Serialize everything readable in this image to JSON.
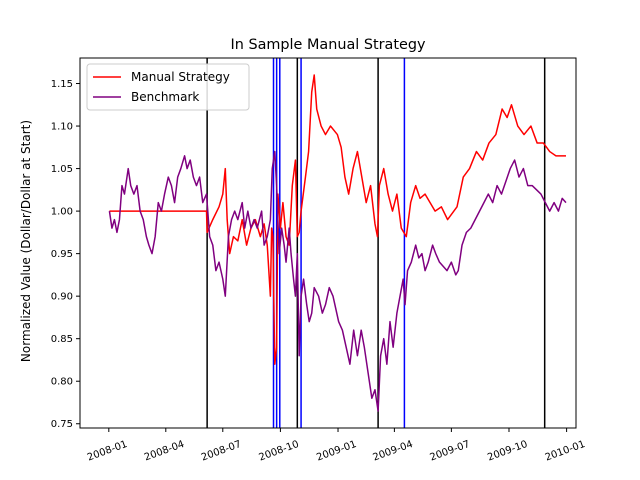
{
  "chart_data": {
    "type": "line",
    "title": "In Sample Manual Strategy",
    "xlabel": "",
    "ylabel": "Normalized Value (Dollar/Dollar at Start)",
    "x_range": [
      "2007-11-16",
      "2010-01-16"
    ],
    "ylim": [
      0.745,
      1.18
    ],
    "grid": false,
    "legend_position": "top-left",
    "x_ticks": [
      "2008-01",
      "2008-04",
      "2008-07",
      "2008-10",
      "2009-01",
      "2009-04",
      "2009-07",
      "2009-10",
      "2010-01"
    ],
    "y_ticks": [
      0.75,
      0.8,
      0.85,
      0.9,
      0.95,
      1.0,
      1.05,
      1.1,
      1.15
    ],
    "series": [
      {
        "name": "Manual Strategy",
        "color": "#ff0000",
        "points": [
          [
            "2008-01-02",
            1.0
          ],
          [
            "2008-06-05",
            1.0
          ],
          [
            "2008-06-06",
            0.975
          ],
          [
            "2008-06-15",
            0.99
          ],
          [
            "2008-06-25",
            1.005
          ],
          [
            "2008-07-01",
            1.02
          ],
          [
            "2008-07-05",
            1.05
          ],
          [
            "2008-07-08",
            0.99
          ],
          [
            "2008-07-12",
            0.95
          ],
          [
            "2008-07-18",
            0.97
          ],
          [
            "2008-07-25",
            0.965
          ],
          [
            "2008-08-01",
            0.99
          ],
          [
            "2008-08-08",
            0.96
          ],
          [
            "2008-08-15",
            0.98
          ],
          [
            "2008-08-22",
            0.99
          ],
          [
            "2008-08-30",
            0.97
          ],
          [
            "2008-09-05",
            0.985
          ],
          [
            "2008-09-10",
            0.96
          ],
          [
            "2008-09-15",
            0.9
          ],
          [
            "2008-09-17",
            0.98
          ],
          [
            "2008-09-19",
            0.97
          ],
          [
            "2008-09-22",
            0.82
          ],
          [
            "2008-09-25",
            0.84
          ],
          [
            "2008-09-27",
            1.02
          ],
          [
            "2008-10-01",
            0.98
          ],
          [
            "2008-10-05",
            1.01
          ],
          [
            "2008-10-10",
            0.97
          ],
          [
            "2008-10-15",
            0.96
          ],
          [
            "2008-10-20",
            1.03
          ],
          [
            "2008-10-25",
            1.06
          ],
          [
            "2008-10-28",
            0.97
          ],
          [
            "2008-10-31",
            0.975
          ],
          [
            "2008-11-03",
            1.0
          ],
          [
            "2008-11-10",
            1.04
          ],
          [
            "2008-11-15",
            1.07
          ],
          [
            "2008-11-20",
            1.14
          ],
          [
            "2008-11-24",
            1.16
          ],
          [
            "2008-11-28",
            1.12
          ],
          [
            "2008-12-05",
            1.1
          ],
          [
            "2008-12-12",
            1.09
          ],
          [
            "2008-12-20",
            1.1
          ],
          [
            "2008-12-31",
            1.09
          ],
          [
            "2009-01-06",
            1.075
          ],
          [
            "2009-01-12",
            1.04
          ],
          [
            "2009-01-18",
            1.02
          ],
          [
            "2009-01-25",
            1.05
          ],
          [
            "2009-02-01",
            1.07
          ],
          [
            "2009-02-08",
            1.04
          ],
          [
            "2009-02-15",
            1.01
          ],
          [
            "2009-02-22",
            1.03
          ],
          [
            "2009-03-01",
            0.985
          ],
          [
            "2009-03-05",
            0.97
          ],
          [
            "2009-03-08",
            1.03
          ],
          [
            "2009-03-15",
            1.05
          ],
          [
            "2009-03-22",
            1.02
          ],
          [
            "2009-03-29",
            1.0
          ],
          [
            "2009-04-05",
            1.02
          ],
          [
            "2009-04-12",
            0.98
          ],
          [
            "2009-04-20",
            0.97
          ],
          [
            "2009-04-27",
            1.01
          ],
          [
            "2009-05-05",
            1.03
          ],
          [
            "2009-05-12",
            1.015
          ],
          [
            "2009-05-20",
            1.02
          ],
          [
            "2009-05-28",
            1.01
          ],
          [
            "2009-06-05",
            1.0
          ],
          [
            "2009-06-15",
            1.005
          ],
          [
            "2009-06-25",
            0.99
          ],
          [
            "2009-07-05",
            1.0
          ],
          [
            "2009-07-10",
            1.005
          ],
          [
            "2009-07-20",
            1.04
          ],
          [
            "2009-07-30",
            1.05
          ],
          [
            "2009-08-10",
            1.07
          ],
          [
            "2009-08-20",
            1.06
          ],
          [
            "2009-08-30",
            1.08
          ],
          [
            "2009-09-10",
            1.09
          ],
          [
            "2009-09-20",
            1.12
          ],
          [
            "2009-09-28",
            1.11
          ],
          [
            "2009-10-05",
            1.125
          ],
          [
            "2009-10-15",
            1.1
          ],
          [
            "2009-10-25",
            1.09
          ],
          [
            "2009-11-05",
            1.1
          ],
          [
            "2009-11-15",
            1.08
          ],
          [
            "2009-11-25",
            1.08
          ],
          [
            "2009-12-05",
            1.07
          ],
          [
            "2009-12-15",
            1.065
          ],
          [
            "2009-12-31",
            1.065
          ]
        ]
      },
      {
        "name": "Benchmark",
        "color": "#800080",
        "points": [
          [
            "2008-01-02",
            1.0
          ],
          [
            "2008-01-06",
            0.98
          ],
          [
            "2008-01-10",
            0.99
          ],
          [
            "2008-01-14",
            0.975
          ],
          [
            "2008-01-18",
            0.99
          ],
          [
            "2008-01-22",
            1.03
          ],
          [
            "2008-01-26",
            1.02
          ],
          [
            "2008-02-01",
            1.05
          ],
          [
            "2008-02-05",
            1.03
          ],
          [
            "2008-02-10",
            1.02
          ],
          [
            "2008-02-15",
            1.03
          ],
          [
            "2008-02-20",
            1.0
          ],
          [
            "2008-02-25",
            0.99
          ],
          [
            "2008-03-01",
            0.97
          ],
          [
            "2008-03-05",
            0.96
          ],
          [
            "2008-03-10",
            0.95
          ],
          [
            "2008-03-15",
            0.97
          ],
          [
            "2008-03-20",
            1.01
          ],
          [
            "2008-03-25",
            1.0
          ],
          [
            "2008-03-30",
            1.02
          ],
          [
            "2008-04-05",
            1.04
          ],
          [
            "2008-04-10",
            1.03
          ],
          [
            "2008-04-15",
            1.01
          ],
          [
            "2008-04-20",
            1.04
          ],
          [
            "2008-04-25",
            1.05
          ],
          [
            "2008-05-01",
            1.065
          ],
          [
            "2008-05-05",
            1.05
          ],
          [
            "2008-05-10",
            1.06
          ],
          [
            "2008-05-15",
            1.04
          ],
          [
            "2008-05-20",
            1.03
          ],
          [
            "2008-05-25",
            1.04
          ],
          [
            "2008-05-30",
            1.01
          ],
          [
            "2008-06-05",
            1.02
          ],
          [
            "2008-06-10",
            0.97
          ],
          [
            "2008-06-15",
            0.96
          ],
          [
            "2008-06-20",
            0.93
          ],
          [
            "2008-06-25",
            0.94
          ],
          [
            "2008-07-01",
            0.92
          ],
          [
            "2008-07-05",
            0.9
          ],
          [
            "2008-07-10",
            0.97
          ],
          [
            "2008-07-15",
            0.99
          ],
          [
            "2008-07-20",
            1.0
          ],
          [
            "2008-07-25",
            0.99
          ],
          [
            "2008-08-01",
            1.01
          ],
          [
            "2008-08-05",
            0.98
          ],
          [
            "2008-08-10",
            1.0
          ],
          [
            "2008-08-15",
            0.98
          ],
          [
            "2008-08-20",
            0.99
          ],
          [
            "2008-08-25",
            0.98
          ],
          [
            "2008-09-01",
            1.0
          ],
          [
            "2008-09-05",
            0.96
          ],
          [
            "2008-09-10",
            0.97
          ],
          [
            "2008-09-15",
            0.99
          ],
          [
            "2008-09-18",
            1.05
          ],
          [
            "2008-09-22",
            1.07
          ],
          [
            "2008-09-25",
            1.03
          ],
          [
            "2008-09-29",
            0.95
          ],
          [
            "2008-10-03",
            0.98
          ],
          [
            "2008-10-07",
            0.96
          ],
          [
            "2008-10-10",
            0.94
          ],
          [
            "2008-10-15",
            0.98
          ],
          [
            "2008-10-18",
            0.95
          ],
          [
            "2008-10-22",
            0.92
          ],
          [
            "2008-10-25",
            0.9
          ],
          [
            "2008-10-28",
            0.95
          ],
          [
            "2008-10-31",
            0.83
          ],
          [
            "2008-11-03",
            0.9
          ],
          [
            "2008-11-07",
            0.92
          ],
          [
            "2008-11-12",
            0.89
          ],
          [
            "2008-11-16",
            0.87
          ],
          [
            "2008-11-20",
            0.88
          ],
          [
            "2008-11-24",
            0.91
          ],
          [
            "2008-12-01",
            0.9
          ],
          [
            "2008-12-07",
            0.88
          ],
          [
            "2008-12-12",
            0.89
          ],
          [
            "2008-12-18",
            0.91
          ],
          [
            "2008-12-24",
            0.9
          ],
          [
            "2009-01-02",
            0.87
          ],
          [
            "2009-01-08",
            0.86
          ],
          [
            "2009-01-14",
            0.84
          ],
          [
            "2009-01-20",
            0.82
          ],
          [
            "2009-01-26",
            0.86
          ],
          [
            "2009-02-01",
            0.83
          ],
          [
            "2009-02-07",
            0.86
          ],
          [
            "2009-02-12",
            0.84
          ],
          [
            "2009-02-18",
            0.81
          ],
          [
            "2009-02-24",
            0.78
          ],
          [
            "2009-03-01",
            0.79
          ],
          [
            "2009-03-06",
            0.765
          ],
          [
            "2009-03-10",
            0.83
          ],
          [
            "2009-03-15",
            0.85
          ],
          [
            "2009-03-20",
            0.82
          ],
          [
            "2009-03-25",
            0.87
          ],
          [
            "2009-03-30",
            0.84
          ],
          [
            "2009-04-05",
            0.88
          ],
          [
            "2009-04-10",
            0.9
          ],
          [
            "2009-04-15",
            0.92
          ],
          [
            "2009-04-18",
            0.89
          ],
          [
            "2009-04-22",
            0.93
          ],
          [
            "2009-04-28",
            0.94
          ],
          [
            "2009-05-05",
            0.96
          ],
          [
            "2009-05-10",
            0.945
          ],
          [
            "2009-05-15",
            0.95
          ],
          [
            "2009-05-20",
            0.93
          ],
          [
            "2009-05-25",
            0.94
          ],
          [
            "2009-06-01",
            0.96
          ],
          [
            "2009-06-06",
            0.95
          ],
          [
            "2009-06-12",
            0.94
          ],
          [
            "2009-06-18",
            0.935
          ],
          [
            "2009-06-24",
            0.93
          ],
          [
            "2009-07-01",
            0.94
          ],
          [
            "2009-07-08",
            0.925
          ],
          [
            "2009-07-12",
            0.93
          ],
          [
            "2009-07-18",
            0.96
          ],
          [
            "2009-07-25",
            0.975
          ],
          [
            "2009-08-01",
            0.98
          ],
          [
            "2009-08-08",
            0.99
          ],
          [
            "2009-08-15",
            1.0
          ],
          [
            "2009-08-22",
            1.01
          ],
          [
            "2009-08-29",
            1.02
          ],
          [
            "2009-09-05",
            1.01
          ],
          [
            "2009-09-12",
            1.03
          ],
          [
            "2009-09-19",
            1.02
          ],
          [
            "2009-09-26",
            1.035
          ],
          [
            "2009-10-03",
            1.05
          ],
          [
            "2009-10-10",
            1.06
          ],
          [
            "2009-10-17",
            1.04
          ],
          [
            "2009-10-24",
            1.05
          ],
          [
            "2009-10-31",
            1.03
          ],
          [
            "2009-11-07",
            1.03
          ],
          [
            "2009-11-14",
            1.025
          ],
          [
            "2009-11-21",
            1.02
          ],
          [
            "2009-11-28",
            1.01
          ],
          [
            "2009-12-05",
            1.0
          ],
          [
            "2009-12-12",
            1.01
          ],
          [
            "2009-12-19",
            1.0
          ],
          [
            "2009-12-25",
            1.015
          ],
          [
            "2009-12-31",
            1.01
          ]
        ]
      }
    ],
    "vertical_lines": [
      {
        "x": "2008-06-06",
        "color": "#000000"
      },
      {
        "x": "2008-09-20",
        "color": "#0000ff"
      },
      {
        "x": "2008-09-25",
        "color": "#0000ff"
      },
      {
        "x": "2008-09-30",
        "color": "#0000ff"
      },
      {
        "x": "2008-10-28",
        "color": "#000000"
      },
      {
        "x": "2008-11-03",
        "color": "#0000ff"
      },
      {
        "x": "2009-03-06",
        "color": "#000000"
      },
      {
        "x": "2009-04-17",
        "color": "#0000ff"
      },
      {
        "x": "2009-11-27",
        "color": "#000000"
      }
    ]
  }
}
